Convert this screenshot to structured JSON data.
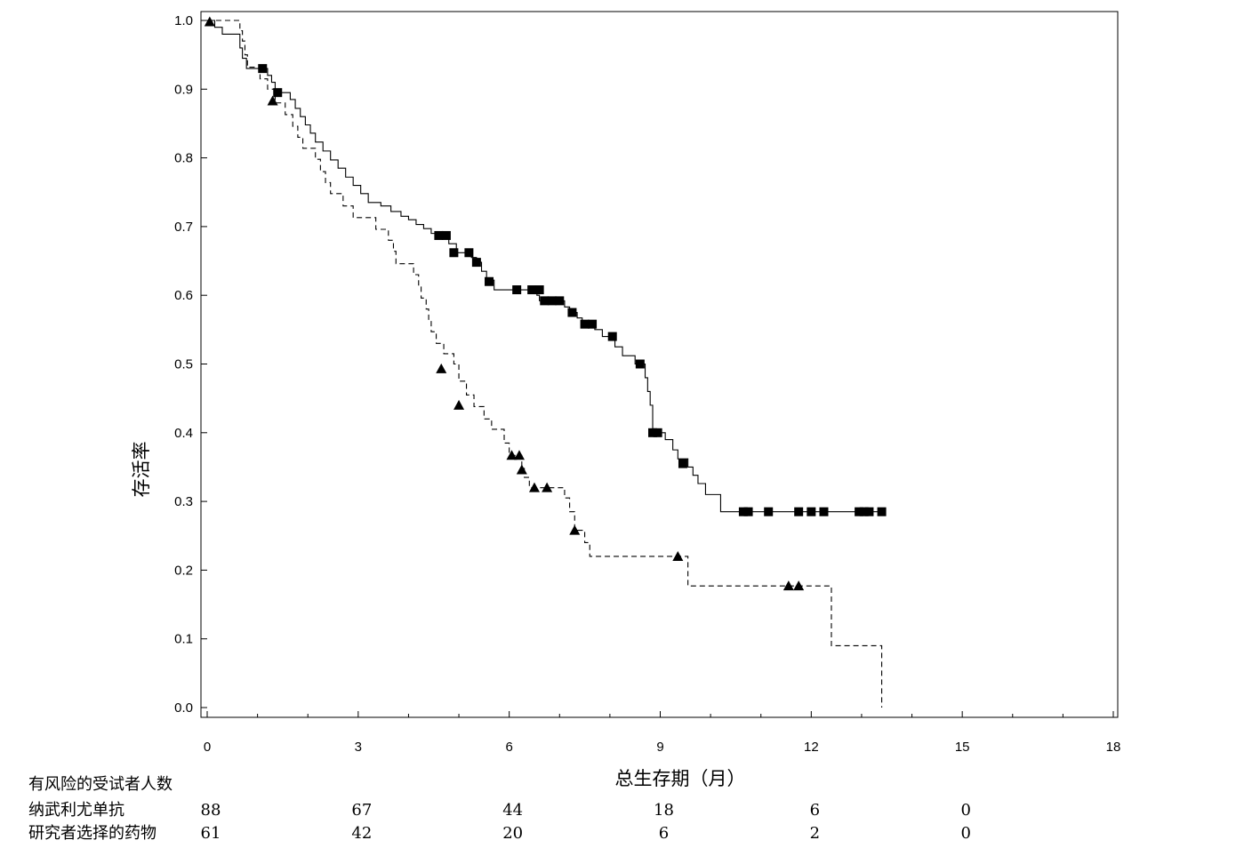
{
  "chart_data": {
    "type": "line",
    "title": "",
    "xlabel": "总生存期（月）",
    "ylabel": "存活率",
    "xlim": [
      0,
      18
    ],
    "ylim": [
      0.0,
      1.0
    ],
    "x_ticks": [
      0,
      3,
      6,
      9,
      12,
      15,
      18
    ],
    "y_ticks": [
      0.0,
      0.1,
      0.2,
      0.3,
      0.4,
      0.5,
      0.6,
      0.7,
      0.8,
      0.9,
      1.0
    ],
    "y_tick_labels": [
      "0.0",
      "0.1",
      "0.2",
      "0.3",
      "0.4",
      "0.5",
      "0.6",
      "0.7",
      "0.8",
      "0.9",
      "1.0"
    ],
    "series": [
      {
        "name": "纳武利尤单抗",
        "line_style": "solid",
        "marker": "square",
        "color": "#000000",
        "steps": [
          [
            0,
            1.0
          ],
          [
            0.15,
            0.99
          ],
          [
            0.3,
            0.98
          ],
          [
            0.65,
            0.96
          ],
          [
            0.7,
            0.945
          ],
          [
            0.78,
            0.93
          ],
          [
            1.1,
            0.93
          ],
          [
            1.2,
            0.92
          ],
          [
            1.28,
            0.91
          ],
          [
            1.35,
            0.895
          ],
          [
            1.65,
            0.885
          ],
          [
            1.75,
            0.872
          ],
          [
            1.85,
            0.86
          ],
          [
            1.95,
            0.848
          ],
          [
            2.05,
            0.836
          ],
          [
            2.15,
            0.823
          ],
          [
            2.3,
            0.81
          ],
          [
            2.45,
            0.797
          ],
          [
            2.6,
            0.785
          ],
          [
            2.75,
            0.772
          ],
          [
            2.9,
            0.76
          ],
          [
            3.05,
            0.748
          ],
          [
            3.2,
            0.735
          ],
          [
            3.45,
            0.73
          ],
          [
            3.65,
            0.722
          ],
          [
            3.85,
            0.715
          ],
          [
            4.0,
            0.71
          ],
          [
            4.15,
            0.703
          ],
          [
            4.3,
            0.697
          ],
          [
            4.45,
            0.69
          ],
          [
            4.6,
            0.687
          ],
          [
            4.8,
            0.675
          ],
          [
            4.95,
            0.662
          ],
          [
            5.25,
            0.655
          ],
          [
            5.35,
            0.648
          ],
          [
            5.45,
            0.635
          ],
          [
            5.55,
            0.622
          ],
          [
            5.7,
            0.608
          ],
          [
            6.4,
            0.608
          ],
          [
            6.55,
            0.6
          ],
          [
            6.6,
            0.592
          ],
          [
            7.1,
            0.583
          ],
          [
            7.2,
            0.575
          ],
          [
            7.35,
            0.567
          ],
          [
            7.45,
            0.558
          ],
          [
            7.7,
            0.55
          ],
          [
            7.85,
            0.54
          ],
          [
            8.1,
            0.525
          ],
          [
            8.25,
            0.512
          ],
          [
            8.5,
            0.5
          ],
          [
            8.7,
            0.48
          ],
          [
            8.75,
            0.46
          ],
          [
            8.8,
            0.44
          ],
          [
            8.85,
            0.4
          ],
          [
            9.1,
            0.39
          ],
          [
            9.25,
            0.375
          ],
          [
            9.35,
            0.362
          ],
          [
            9.55,
            0.35
          ],
          [
            9.65,
            0.338
          ],
          [
            9.75,
            0.326
          ],
          [
            9.9,
            0.31
          ],
          [
            10.2,
            0.285
          ],
          [
            13.4,
            0.285
          ]
        ],
        "censored": [
          [
            1.1,
            0.93
          ],
          [
            1.4,
            0.895
          ],
          [
            4.6,
            0.687
          ],
          [
            4.75,
            0.687
          ],
          [
            4.9,
            0.662
          ],
          [
            5.2,
            0.662
          ],
          [
            5.35,
            0.648
          ],
          [
            5.6,
            0.62
          ],
          [
            6.15,
            0.608
          ],
          [
            6.45,
            0.608
          ],
          [
            6.6,
            0.608
          ],
          [
            6.7,
            0.592
          ],
          [
            6.85,
            0.592
          ],
          [
            7.0,
            0.592
          ],
          [
            7.25,
            0.575
          ],
          [
            7.5,
            0.558
          ],
          [
            7.65,
            0.558
          ],
          [
            8.05,
            0.54
          ],
          [
            8.6,
            0.5
          ],
          [
            8.85,
            0.4
          ],
          [
            8.95,
            0.4
          ],
          [
            9.45,
            0.355
          ],
          [
            10.65,
            0.285
          ],
          [
            10.75,
            0.285
          ],
          [
            11.15,
            0.285
          ],
          [
            11.75,
            0.285
          ],
          [
            12.0,
            0.285
          ],
          [
            12.25,
            0.285
          ],
          [
            12.95,
            0.285
          ],
          [
            13.05,
            0.285
          ],
          [
            13.15,
            0.285
          ],
          [
            13.4,
            0.285
          ]
        ]
      },
      {
        "name": "研究者选择的药物",
        "line_style": "dashed",
        "marker": "triangle",
        "color": "#000000",
        "steps": [
          [
            0,
            1.0
          ],
          [
            0.6,
            1.0
          ],
          [
            0.65,
            0.985
          ],
          [
            0.7,
            0.97
          ],
          [
            0.75,
            0.95
          ],
          [
            0.8,
            0.932
          ],
          [
            1.0,
            0.932
          ],
          [
            1.05,
            0.915
          ],
          [
            1.2,
            0.9
          ],
          [
            1.35,
            0.88
          ],
          [
            1.55,
            0.863
          ],
          [
            1.7,
            0.846
          ],
          [
            1.8,
            0.83
          ],
          [
            1.9,
            0.814
          ],
          [
            2.15,
            0.798
          ],
          [
            2.25,
            0.78
          ],
          [
            2.35,
            0.764
          ],
          [
            2.45,
            0.748
          ],
          [
            2.7,
            0.73
          ],
          [
            2.9,
            0.713
          ],
          [
            3.35,
            0.696
          ],
          [
            3.6,
            0.68
          ],
          [
            3.7,
            0.664
          ],
          [
            3.75,
            0.646
          ],
          [
            4.1,
            0.63
          ],
          [
            4.2,
            0.612
          ],
          [
            4.25,
            0.596
          ],
          [
            4.35,
            0.58
          ],
          [
            4.4,
            0.563
          ],
          [
            4.45,
            0.547
          ],
          [
            4.55,
            0.53
          ],
          [
            4.7,
            0.515
          ],
          [
            4.9,
            0.5
          ],
          [
            5.0,
            0.475
          ],
          [
            5.15,
            0.455
          ],
          [
            5.3,
            0.438
          ],
          [
            5.5,
            0.42
          ],
          [
            5.65,
            0.405
          ],
          [
            5.9,
            0.385
          ],
          [
            6.0,
            0.367
          ],
          [
            6.25,
            0.35
          ],
          [
            6.3,
            0.335
          ],
          [
            6.4,
            0.32
          ],
          [
            7.0,
            0.32
          ],
          [
            7.1,
            0.305
          ],
          [
            7.2,
            0.285
          ],
          [
            7.3,
            0.258
          ],
          [
            7.5,
            0.24
          ],
          [
            7.6,
            0.22
          ],
          [
            9.5,
            0.22
          ],
          [
            9.55,
            0.177
          ],
          [
            12.35,
            0.177
          ],
          [
            12.4,
            0.09
          ],
          [
            13.35,
            0.09
          ],
          [
            13.4,
            0.0
          ]
        ],
        "censored": [
          [
            0.05,
            0.998
          ],
          [
            1.3,
            0.883
          ],
          [
            4.65,
            0.493
          ],
          [
            5.0,
            0.44
          ],
          [
            6.05,
            0.367
          ],
          [
            6.2,
            0.367
          ],
          [
            6.25,
            0.346
          ],
          [
            6.5,
            0.32
          ],
          [
            6.75,
            0.32
          ],
          [
            7.3,
            0.258
          ],
          [
            9.35,
            0.22
          ],
          [
            11.55,
            0.177
          ],
          [
            11.75,
            0.177
          ]
        ]
      }
    ]
  },
  "risk_table": {
    "header": "有风险的受试者人数",
    "rows": [
      {
        "label": "纳武利尤单抗",
        "counts": [
          "88",
          "67",
          "44",
          "18",
          "6",
          "0"
        ]
      },
      {
        "label": "研究者选择的药物",
        "counts": [
          "61",
          "42",
          "20",
          "6",
          "2",
          "0"
        ]
      }
    ],
    "x_positions": [
      0,
      3,
      6,
      9,
      12,
      15
    ]
  }
}
